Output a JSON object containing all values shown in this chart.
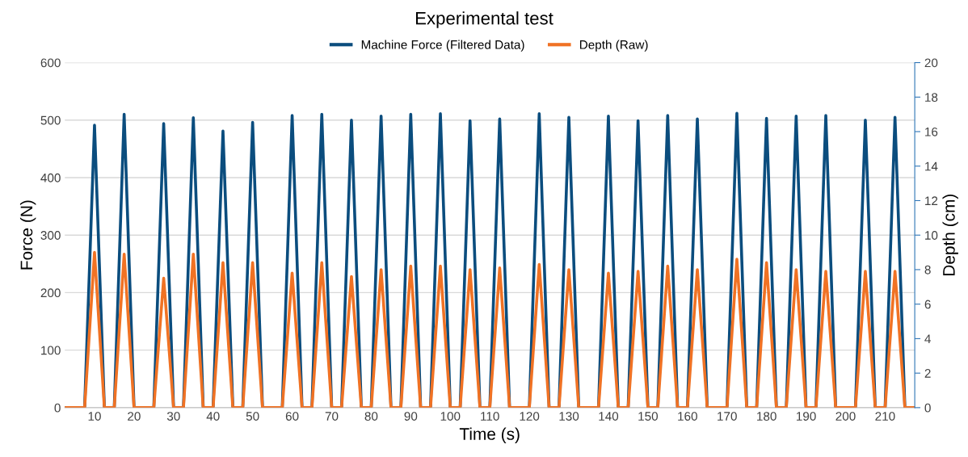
{
  "chart_data": {
    "type": "line",
    "title": "Experimental test",
    "xlabel": "Time (s)",
    "ylabel": "Force (N)",
    "y2label": "Depth (cm)",
    "x": [
      2.5,
      5,
      7.5,
      10,
      12.5,
      15,
      17.5,
      20,
      22.5,
      25,
      27.5,
      30,
      32.5,
      35,
      37.5,
      40,
      42.5,
      45,
      47.5,
      50,
      52.5,
      55,
      57.5,
      60,
      62.5,
      65,
      67.5,
      70,
      72.5,
      75,
      77.5,
      80,
      82.5,
      85,
      87.5,
      90,
      92.5,
      95,
      97.5,
      100,
      102.5,
      105,
      107.5,
      110,
      112.5,
      115,
      117.5,
      120,
      122.5,
      125,
      127.5,
      130,
      132.5,
      135,
      137.5,
      140,
      142.5,
      145,
      147.5,
      150,
      152.5,
      155,
      157.5,
      160,
      162.5,
      165,
      167.5,
      170,
      172.5,
      175,
      177.5,
      180,
      182.5,
      185,
      187.5,
      190,
      192.5,
      195,
      197.5,
      200,
      202.5,
      205,
      207.5,
      210,
      212.5,
      215,
      217.5
    ],
    "series": [
      {
        "name": "Machine Force (Filtered Data)",
        "color": "#0b4d7e",
        "values": [
          0,
          0,
          0,
          491,
          0,
          0,
          510,
          0,
          0,
          0,
          494,
          0,
          0,
          504,
          0,
          0,
          481,
          0,
          0,
          496,
          0,
          0,
          0,
          508,
          0,
          0,
          510,
          0,
          0,
          500,
          0,
          0,
          507,
          0,
          0,
          510,
          0,
          0,
          511,
          0,
          0,
          499,
          0,
          0,
          502,
          0,
          0,
          0,
          511,
          0,
          0,
          505,
          0,
          0,
          0,
          507,
          0,
          0,
          499,
          0,
          0,
          508,
          0,
          0,
          502,
          0,
          0,
          0,
          512,
          0,
          0,
          503,
          0,
          0,
          507,
          0,
          0,
          508,
          0,
          0,
          0,
          500,
          0,
          0,
          505,
          0,
          0
        ]
      },
      {
        "name": "Depth (Raw)",
        "color": "#f07224",
        "axis": "y2",
        "values": [
          0,
          0,
          0,
          9.0,
          0,
          0,
          8.9,
          0,
          0,
          0,
          7.5,
          0,
          0,
          8.9,
          0,
          0,
          8.4,
          0,
          0,
          8.4,
          0,
          0,
          0,
          7.8,
          0,
          0,
          8.4,
          0,
          0,
          7.6,
          0,
          0,
          8.0,
          0,
          0,
          8.2,
          0,
          0,
          8.2,
          0,
          0,
          8.0,
          0,
          0,
          8.1,
          0,
          0,
          0,
          8.3,
          0,
          0,
          8.0,
          0,
          0,
          0,
          7.8,
          0,
          0,
          7.9,
          0,
          0,
          8.2,
          0,
          0,
          8.0,
          0,
          0,
          0,
          8.6,
          0,
          0,
          8.4,
          0,
          0,
          8.0,
          0,
          0,
          7.9,
          0,
          0,
          0,
          7.9,
          0,
          0,
          7.9,
          0,
          0
        ]
      }
    ],
    "xlim": [
      2.5,
      217.5
    ],
    "xticks": [
      10,
      20,
      30,
      40,
      50,
      60,
      70,
      80,
      90,
      100,
      110,
      120,
      130,
      140,
      150,
      160,
      170,
      180,
      190,
      200,
      210
    ],
    "ylim": [
      0,
      600
    ],
    "yticks": [
      0,
      100,
      200,
      300,
      400,
      500,
      600
    ],
    "y2lim": [
      0,
      20
    ],
    "y2ticks": [
      0,
      2,
      4,
      6,
      8,
      10,
      12,
      14,
      16,
      18,
      20
    ],
    "grid": "y",
    "legend": "top",
    "marker": "none",
    "line_style": "solid"
  }
}
